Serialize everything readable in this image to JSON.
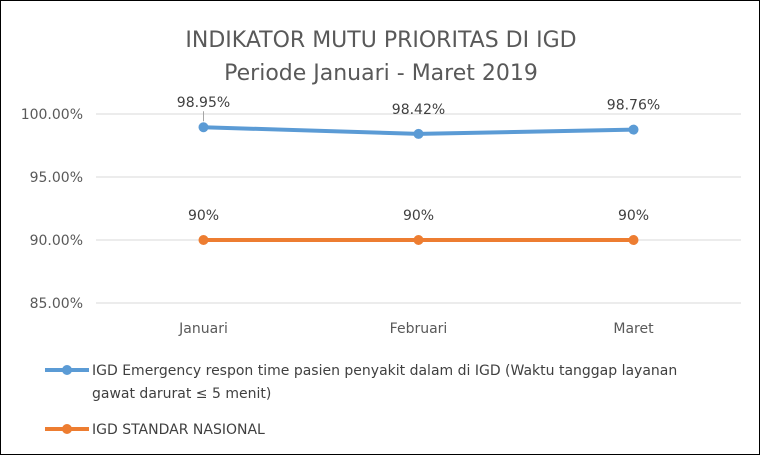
{
  "chart_data": {
    "type": "line",
    "title_lines": [
      "INDIKATOR MUTU PRIORITAS DI IGD",
      "Periode Januari - Maret 2019"
    ],
    "categories": [
      "Januari",
      "Februari",
      "Maret"
    ],
    "ylim": [
      85,
      100
    ],
    "yticks": [
      85,
      90,
      95,
      100
    ],
    "ytick_labels": [
      "85.00%",
      "90.00%",
      "95.00%",
      "100.00%"
    ],
    "grid": true,
    "legend_position": "bottom",
    "series": [
      {
        "name_lines": [
          "IGD Emergency respon time pasien penyakit dalam di IGD (Waktu tanggap layanan",
          "gawat darurat ≤ 5 menit)"
        ],
        "values": [
          98.95,
          98.42,
          98.76
        ],
        "labels": [
          "98.95%",
          "98.42%",
          "98.76%"
        ],
        "color": "#5B9BD5"
      },
      {
        "name_lines": [
          "IGD STANDAR NASIONAL"
        ],
        "values": [
          90,
          90,
          90
        ],
        "labels": [
          "90%",
          "90%",
          "90%"
        ],
        "color": "#ED7D31"
      }
    ]
  }
}
